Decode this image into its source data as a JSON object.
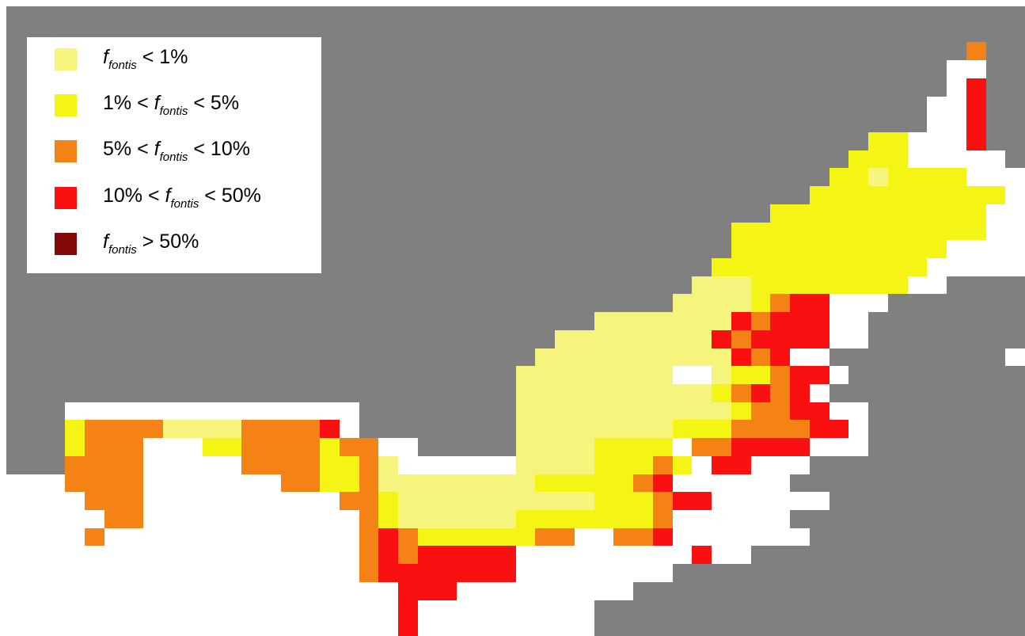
{
  "map": {
    "background_color": "#ffffff",
    "no_data_color": "#808080",
    "class_colors": {
      "1": "#f5f57d",
      "2": "#f5f515",
      "3": "#f58214",
      "4": "#fa1010",
      "5": "#820808"
    },
    "grid": [
      "....................................................",
      "....................................................",
      ".................................................3..",
      "................................................WW..",
      "................................................W4..",
      "...............................................WW4..",
      "...............................................WW4..",
      "............................................22WWW4..",
      "...........................................222WWWWW.",
      "..........................................2212222WWW",
      ".........................................2222222222W",
      ".......................................22222222222WW",
      ".....................................2222222222222WW",
      ".....................................22222222222WWWW",
      "....................................22222222222WWWWW",
      "...................................11122222222WW....",
      "..................................11112344WWW.......",
      "..............................111111143444WW........",
      "............................11111111434444WW........",
      "...........................1111111111434WW.........",
      "..........................11111111WW122344W.........",
      "..........................111111111123434W..........",
      "...WWWWWWWWWWWWWWW........1111111111123344WW........",
      "...23333111133334W........11111111222333344W........",
      "...2333WWW223333233WW.....11112222W334444WWW........",
      "...3333WWWWW33332231WWWWWW111122232W44WWW...........",
      "WWW3333WWWWWWW33223111111112222234WWWWWW............",
      "WWWW333WWWWWWWWWW3321111111111222344WWWWWW..........",
      "WWWWW33WWWWWWWWWWW3211111122222223WWWWWW............",
      "WWWW3WWWWWWWWWWWWW34322222233WW334WWWWWWW...........",
      "WWWWWWWWWWWWWWWWWW34344444WWWWWWWWW4WW..............",
      "WWWWWWWWWWWWWWWWWW34444444WWWWWWWW..................",
      "WWWWWWWWWWWWWWWWWWWW444WWWWWWWWW....................",
      "WWWWWWWWWWWWWWWWWWWW4WWWWWWWWW......................",
      "WWWWWWWWWWWWWWWWWWWW4WWWWWWWWW......................"
    ]
  },
  "legend": {
    "items": [
      {
        "color": "#f5f57d",
        "pre": "",
        "symbol": "f",
        "sub": "fontis",
        "post": " < 1%"
      },
      {
        "color": "#f5f515",
        "pre": "1% <  ",
        "symbol": "f",
        "sub": "fontis",
        "post": " < 5%"
      },
      {
        "color": "#f58214",
        "pre": "5% <  ",
        "symbol": "f",
        "sub": "fontis",
        "post": " < 10%"
      },
      {
        "color": "#fa1010",
        "pre": "10% <  ",
        "symbol": "f",
        "sub": "fontis",
        "post": " < 50%"
      },
      {
        "color": "#820808",
        "pre": "",
        "symbol": "f",
        "sub": "fontis",
        "post": " > 50%"
      }
    ]
  }
}
